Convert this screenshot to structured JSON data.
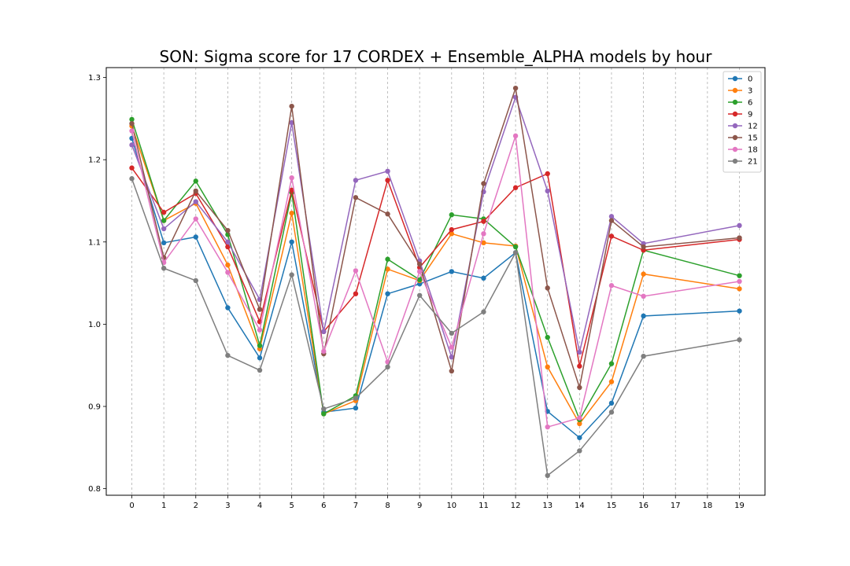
{
  "chart_data": {
    "type": "line",
    "title": "SON: Sigma score for 17 CORDEX + Ensemble_ALPHA models by hour",
    "xlabel": "",
    "ylabel": "",
    "xlim": [
      -0.8,
      19.8
    ],
    "ylim": [
      0.792,
      1.312
    ],
    "x_ticks": [
      0,
      1,
      2,
      3,
      4,
      5,
      6,
      7,
      8,
      9,
      10,
      11,
      12,
      13,
      14,
      15,
      16,
      17,
      18,
      19
    ],
    "y_ticks": [
      0.8,
      0.9,
      1.0,
      1.1,
      1.2,
      1.3
    ],
    "y_tick_labels": [
      "0.8",
      "0.9",
      "1.0",
      "1.1",
      "1.2",
      "1.3"
    ],
    "grid": "vertical-dashed",
    "legend_position": "top-right",
    "x": [
      0,
      1,
      2,
      3,
      4,
      5,
      6,
      7,
      8,
      9,
      10,
      11,
      12,
      13,
      14,
      15,
      16,
      19
    ],
    "series": [
      {
        "name": "0",
        "color": "#1f77b4",
        "values": [
          1.226,
          1.099,
          1.106,
          1.02,
          0.959,
          1.1,
          0.893,
          0.898,
          1.037,
          1.049,
          1.064,
          1.056,
          1.087,
          0.894,
          0.862,
          0.904,
          1.01,
          1.016
        ]
      },
      {
        "name": "3",
        "color": "#ff7f0e",
        "values": [
          1.241,
          1.126,
          1.147,
          1.072,
          0.97,
          1.135,
          0.891,
          0.907,
          1.067,
          1.053,
          1.11,
          1.099,
          1.095,
          0.948,
          0.879,
          0.93,
          1.061,
          1.043
        ]
      },
      {
        "name": "6",
        "color": "#2ca02c",
        "values": [
          1.249,
          1.126,
          1.174,
          1.109,
          0.974,
          1.16,
          0.891,
          0.913,
          1.079,
          1.054,
          1.133,
          1.128,
          1.094,
          0.984,
          0.884,
          0.952,
          1.09,
          1.059
        ]
      },
      {
        "name": "9",
        "color": "#d62728",
        "values": [
          1.19,
          1.136,
          1.159,
          1.094,
          1.003,
          1.163,
          0.991,
          1.037,
          1.175,
          1.069,
          1.115,
          1.125,
          1.166,
          1.183,
          0.949,
          1.107,
          1.09,
          1.103
        ]
      },
      {
        "name": "12",
        "color": "#9467bd",
        "values": [
          1.218,
          1.116,
          1.149,
          1.1,
          1.03,
          1.245,
          0.991,
          1.175,
          1.186,
          1.077,
          0.96,
          1.161,
          1.276,
          1.162,
          0.966,
          1.131,
          1.098,
          1.12
        ]
      },
      {
        "name": "15",
        "color": "#8c564b",
        "values": [
          1.244,
          1.081,
          1.162,
          1.114,
          1.018,
          1.265,
          0.964,
          1.154,
          1.134,
          1.073,
          0.943,
          1.171,
          1.287,
          1.044,
          0.923,
          1.126,
          1.094,
          1.105
        ]
      },
      {
        "name": "18",
        "color": "#e377c2",
        "values": [
          1.235,
          1.075,
          1.128,
          1.063,
          0.993,
          1.178,
          0.967,
          1.065,
          0.954,
          1.064,
          0.972,
          1.11,
          1.229,
          0.875,
          0.886,
          1.047,
          1.034,
          1.052
        ]
      },
      {
        "name": "21",
        "color": "#7f7f7f",
        "values": [
          1.177,
          1.068,
          1.053,
          0.962,
          0.944,
          1.06,
          0.897,
          0.91,
          0.948,
          1.035,
          0.989,
          1.015,
          1.087,
          0.816,
          0.846,
          0.893,
          0.961,
          0.981
        ]
      }
    ]
  }
}
